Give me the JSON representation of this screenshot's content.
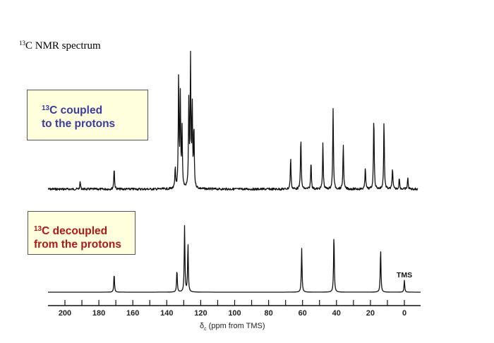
{
  "title": {
    "sup": "13",
    "text": "C NMR spectrum"
  },
  "labels": {
    "coupled": {
      "sup": "13",
      "line1": "C coupled",
      "line2": "to the protons",
      "color": "#3a3aa0"
    },
    "decoupled": {
      "sup": "13",
      "line1": "C decoupled",
      "line2": "from the protons",
      "color": "#b01818"
    }
  },
  "axis": {
    "title_prefix": "δ",
    "title_sub": "c",
    "title_suffix": " (ppm from TMS)",
    "ticks": [
      "200",
      "180",
      "160",
      "140",
      "120",
      "100",
      "80",
      "60",
      "40",
      "20",
      "0"
    ]
  },
  "tms_label": "TMS",
  "chart_data": [
    {
      "type": "line",
      "title": "13C coupled to the protons",
      "xlabel": "δc (ppm from TMS)",
      "ylabel": "",
      "xlim": [
        210,
        -8
      ],
      "x_reversed": true,
      "grid": false,
      "peaks": [
        {
          "ppm": 191,
          "rel_height": 0.06
        },
        {
          "ppm": 171,
          "rel_height": 0.17
        },
        {
          "ppm": 135,
          "rel_height": 0.16
        },
        {
          "ppm": 133,
          "rel_height": 0.89
        },
        {
          "ppm": 132,
          "rel_height": 0.71
        },
        {
          "ppm": 131,
          "rel_height": 0.47
        },
        {
          "ppm": 127,
          "rel_height": 0.68
        },
        {
          "ppm": 126,
          "rel_height": 1.0
        },
        {
          "ppm": 125,
          "rel_height": 0.64
        },
        {
          "ppm": 124,
          "rel_height": 0.47
        },
        {
          "ppm": 67,
          "rel_height": 0.25
        },
        {
          "ppm": 61,
          "rel_height": 0.42
        },
        {
          "ppm": 55,
          "rel_height": 0.22
        },
        {
          "ppm": 48,
          "rel_height": 0.36
        },
        {
          "ppm": 42,
          "rel_height": 0.64
        },
        {
          "ppm": 36,
          "rel_height": 0.36
        },
        {
          "ppm": 23,
          "rel_height": 0.18
        },
        {
          "ppm": 18,
          "rel_height": 0.59
        },
        {
          "ppm": 12,
          "rel_height": 0.54
        },
        {
          "ppm": 7,
          "rel_height": 0.17
        },
        {
          "ppm": 3,
          "rel_height": 0.09
        },
        {
          "ppm": -2,
          "rel_height": 0.09
        }
      ]
    },
    {
      "type": "line",
      "title": "13C decoupled from the protons",
      "xlabel": "δc (ppm from TMS)",
      "ylabel": "",
      "xlim": [
        210,
        -8
      ],
      "x_reversed": true,
      "grid": false,
      "annotations": [
        {
          "text": "TMS",
          "ppm": 0
        }
      ],
      "peaks": [
        {
          "ppm": 171,
          "rel_height": 0.28
        },
        {
          "ppm": 134,
          "rel_height": 0.34
        },
        {
          "ppm": 129.5,
          "rel_height": 1.0
        },
        {
          "ppm": 127.5,
          "rel_height": 0.74
        },
        {
          "ppm": 60.5,
          "rel_height": 0.66
        },
        {
          "ppm": 41.5,
          "rel_height": 0.88
        },
        {
          "ppm": 14,
          "rel_height": 0.66
        },
        {
          "ppm": 0,
          "rel_height": 0.18
        }
      ]
    }
  ]
}
